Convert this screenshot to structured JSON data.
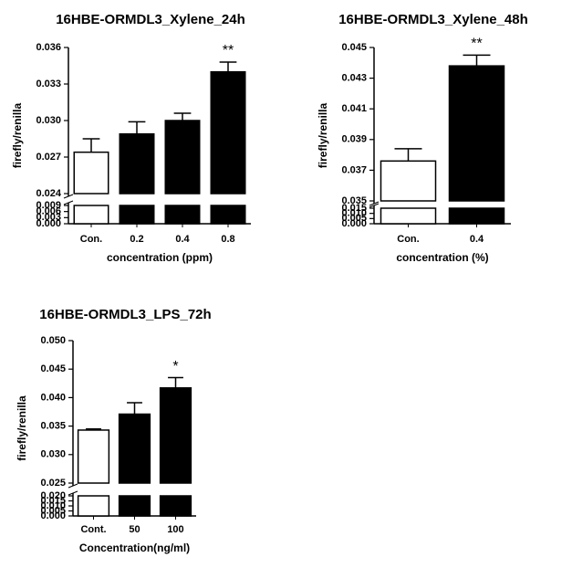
{
  "chart_data": [
    {
      "type": "bar",
      "title": "16HBE-ORMDL3_Xylene_24h",
      "ylabel": "firefly/renilla",
      "xlabel": "concentration (ppm)",
      "categories": [
        "Con.",
        "0.2",
        "0.4",
        "0.8"
      ],
      "values": [
        0.0274,
        0.0289,
        0.03,
        0.034
      ],
      "errors": [
        0.0011,
        0.001,
        0.0006,
        0.0008
      ],
      "value_labels": [
        null,
        null,
        null,
        "**"
      ],
      "colors": [
        "#ffffff",
        "#000000",
        "#000000",
        "#000000"
      ],
      "ylim": [
        0.024,
        0.036
      ],
      "yticks": [
        0.024,
        0.027,
        {
          "value": 0.03,
          "label": "0.030"
        },
        0.033,
        0.036
      ],
      "ylim_lower": [
        0,
        0.009
      ],
      "yticks_lower": [
        {
          "value": 0,
          "label": "0.000"
        },
        0.003,
        0.006,
        0.009
      ]
    },
    {
      "type": "bar",
      "title": "16HBE-ORMDL3_Xylene_48h",
      "ylabel": "firefly/renilla",
      "xlabel": "concentration (%)",
      "categories": [
        "Con.",
        "0.4"
      ],
      "values": [
        0.0376,
        0.0438
      ],
      "errors": [
        0.0008,
        0.0007
      ],
      "value_labels": [
        null,
        "**"
      ],
      "colors": [
        "#ffffff",
        "#000000"
      ],
      "ylim": [
        0.035,
        0.045
      ],
      "yticks": [
        0.035,
        0.037,
        0.039,
        0.041,
        0.043,
        0.045
      ],
      "ylim_lower": [
        0,
        0.015
      ],
      "yticks_lower": [
        {
          "value": 0,
          "label": "0.000"
        },
        0.005,
        {
          "value": 0.01,
          "label": "0.010"
        },
        0.015
      ]
    },
    {
      "type": "bar",
      "title": "16HBE-ORMDL3_LPS_72h",
      "ylabel": "firefly/renilla",
      "xlabel": "Concentration(ng/ml)",
      "categories": [
        "Cont.",
        "50",
        "100"
      ],
      "values": [
        0.0343,
        0.0371,
        0.0417
      ],
      "errors": [
        0.0002,
        0.002,
        0.0018
      ],
      "value_labels": [
        null,
        null,
        "*"
      ],
      "colors": [
        "#ffffff",
        "#000000",
        "#000000"
      ],
      "ylim": [
        0.025,
        0.05
      ],
      "yticks": [
        0.025,
        {
          "value": 0.03,
          "label": "0.030"
        },
        0.035,
        {
          "value": 0.04,
          "label": "0.040"
        },
        0.045,
        {
          "value": 0.05,
          "label": "0.050"
        }
      ],
      "ylim_lower": [
        0,
        0.02
      ],
      "yticks_lower": [
        {
          "value": 0,
          "label": "0.000"
        },
        0.005,
        {
          "value": 0.01,
          "label": "0.010"
        },
        0.015,
        {
          "value": 0.02,
          "label": "0.020"
        }
      ]
    }
  ]
}
